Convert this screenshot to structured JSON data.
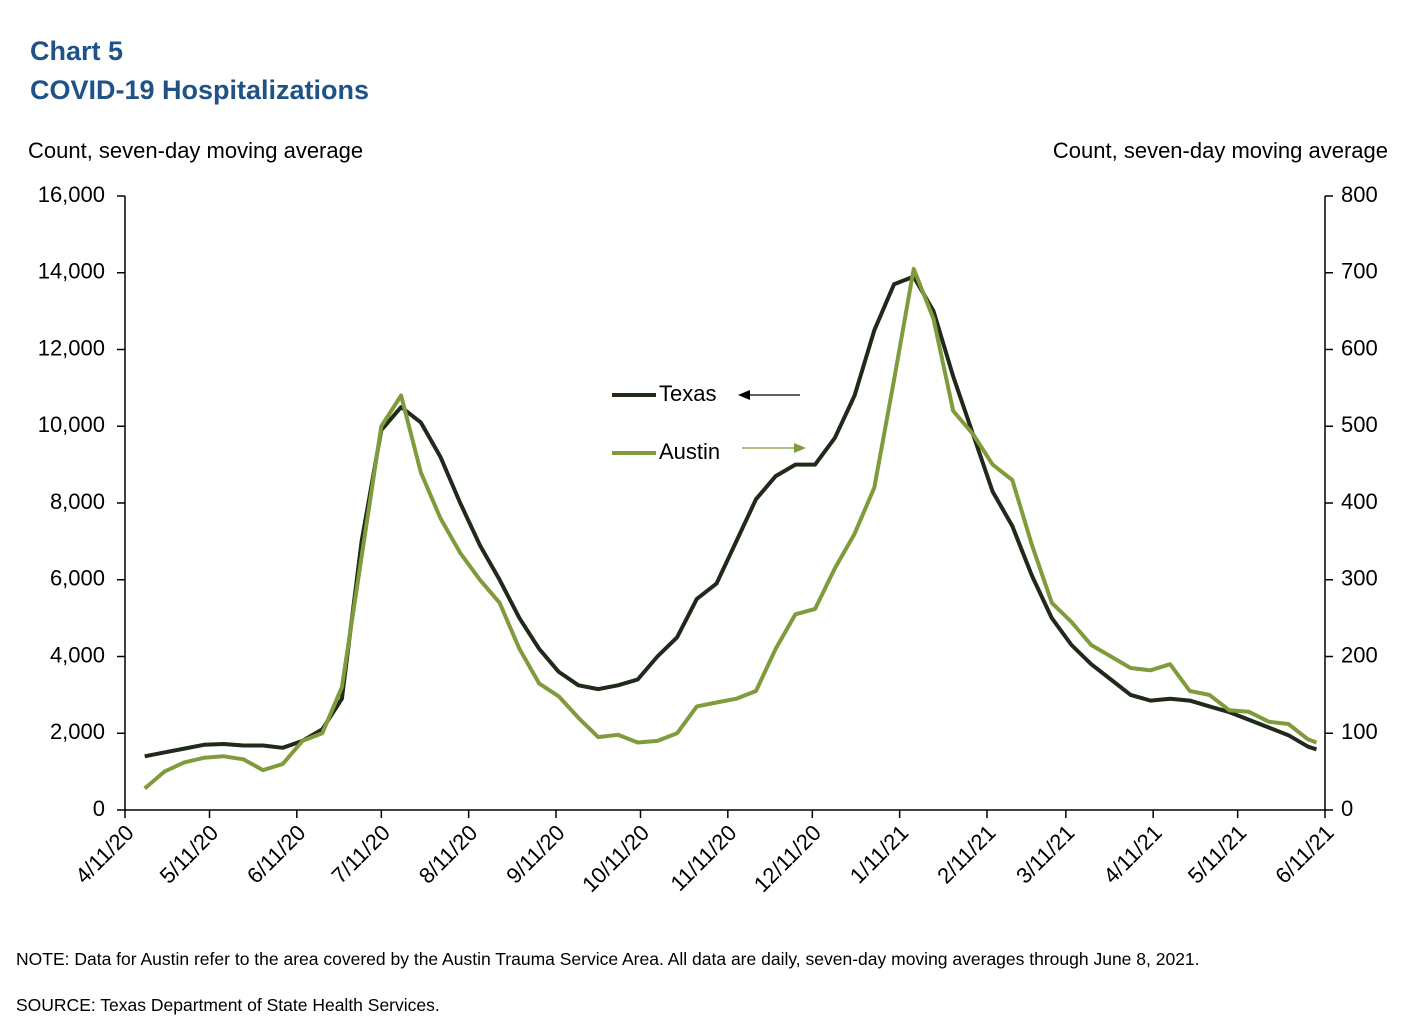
{
  "chart_data": {
    "type": "line",
    "title": "Chart 5",
    "subtitle": "COVID-19 Hospitalizations",
    "y_label": "Count, seven-day moving average",
    "y2_label": "Count, seven-day moving average",
    "note": "NOTE: Data for Austin refer to the area covered by the Austin Trauma Service Area. All data are daily, seven-day moving averages through June 8, 2021.",
    "source": "SOURCE: Texas Department of State Health Services.",
    "x": [
      "2020-04-18",
      "2020-04-25",
      "2020-05-02",
      "2020-05-09",
      "2020-05-16",
      "2020-05-23",
      "2020-05-30",
      "2020-06-06",
      "2020-06-13",
      "2020-06-20",
      "2020-06-27",
      "2020-07-04",
      "2020-07-11",
      "2020-07-18",
      "2020-07-25",
      "2020-08-01",
      "2020-08-08",
      "2020-08-15",
      "2020-08-22",
      "2020-08-29",
      "2020-09-05",
      "2020-09-12",
      "2020-09-19",
      "2020-09-26",
      "2020-10-03",
      "2020-10-10",
      "2020-10-17",
      "2020-10-24",
      "2020-10-31",
      "2020-11-07",
      "2020-11-14",
      "2020-11-21",
      "2020-11-28",
      "2020-12-05",
      "2020-12-12",
      "2020-12-19",
      "2020-12-26",
      "2021-01-02",
      "2021-01-09",
      "2021-01-16",
      "2021-01-23",
      "2021-01-30",
      "2021-02-06",
      "2021-02-13",
      "2021-02-20",
      "2021-02-27",
      "2021-03-06",
      "2021-03-13",
      "2021-03-20",
      "2021-03-27",
      "2021-04-03",
      "2021-04-10",
      "2021-04-17",
      "2021-04-24",
      "2021-05-01",
      "2021-05-08",
      "2021-05-15",
      "2021-05-22",
      "2021-05-29",
      "2021-06-05",
      "2021-06-08"
    ],
    "series": [
      {
        "name": "Texas",
        "color": "#1f2a1a",
        "axis": "y",
        "values": [
          1400,
          1500,
          1600,
          1700,
          1720,
          1680,
          1680,
          1620,
          1800,
          2100,
          2900,
          7000,
          9900,
          10500,
          10100,
          9200,
          8000,
          6900,
          6000,
          5000,
          4200,
          3600,
          3250,
          3150,
          3250,
          3400,
          4000,
          4500,
          5500,
          5900,
          7000,
          8100,
          8700,
          9000,
          9000,
          9700,
          10800,
          12500,
          13700,
          13900,
          13000,
          11300,
          9800,
          8300,
          7400,
          6100,
          5000,
          4300,
          3800,
          3400,
          3000,
          2850,
          2900,
          2850,
          2700,
          2550,
          2350,
          2150,
          1950,
          1650,
          1580
        ]
      },
      {
        "name": "Austin",
        "color": "#7f9b3b",
        "axis": "y2",
        "values": [
          28,
          50,
          62,
          68,
          70,
          66,
          52,
          60,
          90,
          100,
          160,
          330,
          500,
          540,
          440,
          380,
          335,
          300,
          270,
          210,
          165,
          148,
          120,
          95,
          98,
          88,
          90,
          100,
          135,
          140,
          145,
          155,
          210,
          255,
          262,
          315,
          360,
          420,
          560,
          705,
          640,
          520,
          490,
          450,
          430,
          345,
          270,
          245,
          215,
          200,
          185,
          182,
          190,
          155,
          150,
          130,
          128,
          115,
          112,
          92,
          88
        ]
      }
    ],
    "xlim": [
      "2020-04-11",
      "2021-06-11"
    ],
    "xticks": [
      {
        "value": "2020-04-11",
        "label": "4/11/20"
      },
      {
        "value": "2020-05-11",
        "label": "5/11/20"
      },
      {
        "value": "2020-06-11",
        "label": "6/11/20"
      },
      {
        "value": "2020-07-11",
        "label": "7/11/20"
      },
      {
        "value": "2020-08-11",
        "label": "8/11/20"
      },
      {
        "value": "2020-09-11",
        "label": "9/11/20"
      },
      {
        "value": "2020-10-11",
        "label": "10/11/20"
      },
      {
        "value": "2020-11-11",
        "label": "11/11/20"
      },
      {
        "value": "2020-12-11",
        "label": "12/11/20"
      },
      {
        "value": "2021-01-11",
        "label": "1/11/21"
      },
      {
        "value": "2021-02-11",
        "label": "2/11/21"
      },
      {
        "value": "2021-03-11",
        "label": "3/11/21"
      },
      {
        "value": "2021-04-11",
        "label": "4/11/21"
      },
      {
        "value": "2021-05-11",
        "label": "5/11/21"
      },
      {
        "value": "2021-06-11",
        "label": "6/11/21"
      }
    ],
    "ylim": [
      0,
      16000
    ],
    "yticks": [
      0,
      {
        "value": 2000,
        "label": "2,000"
      },
      {
        "value": 4000,
        "label": "4,000"
      },
      {
        "value": 6000,
        "label": "6,000"
      },
      {
        "value": 8000,
        "label": "8,000"
      },
      {
        "value": 10000,
        "label": "10,000"
      },
      {
        "value": 12000,
        "label": "12,000"
      },
      {
        "value": 14000,
        "label": "14,000"
      },
      {
        "value": 16000,
        "label": "16,000"
      }
    ],
    "y2lim": [
      0,
      800
    ],
    "y2ticks": [
      0,
      100,
      200,
      300,
      400,
      500,
      600,
      700,
      800
    ],
    "grid": false
  }
}
